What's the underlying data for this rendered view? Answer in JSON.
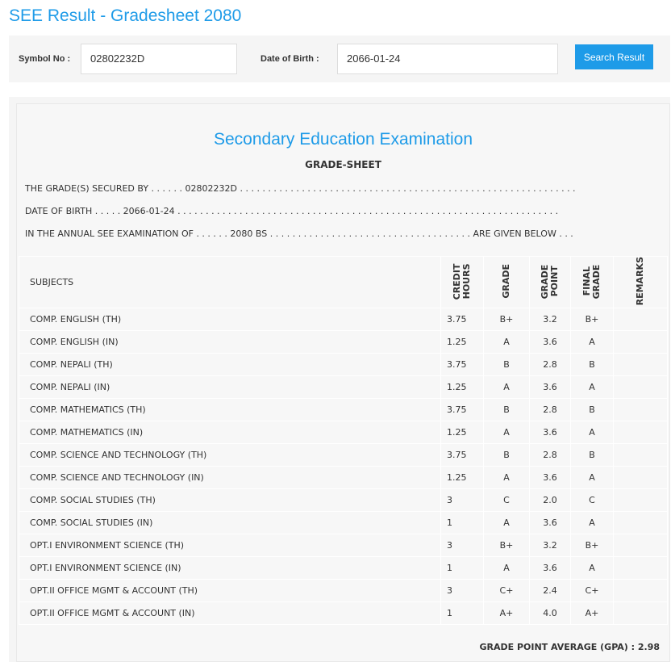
{
  "page_title": "SEE Result - Gradesheet 2080",
  "form": {
    "symbol_label": "Symbol No :",
    "symbol_value": "02802232D",
    "dob_label": "Date of Birth :",
    "dob_value": "2066-01-24",
    "search_label": "Search Result"
  },
  "sheet": {
    "heading": "Secondary Education Examination",
    "subheading": "GRADE-SHEET",
    "line1": "THE GRADE(S) SECURED BY . . . . . . 02802232D . . . . . . . . . . . . . . . . . . . . . . . . . . . . . . . . . . . . . . . . . . . . . . . . . . . . . . . . . . . .",
    "line2": "DATE OF BIRTH . . . . . 2066-01-24 . . . . . . . . . . . . . . . . . . . . . . . . . . . . . . . . . . . . . . . . . . . . . . . . . . . . . . . . . . . . . . . . . . . .",
    "line3": "IN THE ANNUAL SEE EXAMINATION OF . . . . . . 2080 BS . . . . . . . . . . . . . . . . . . . . . . . . . . . . . . . . . . . . ARE GIVEN BELOW . . .",
    "columns": [
      "SUBJECTS",
      "CREDIT HOURS",
      "GRADE",
      "GRADE POINT",
      "FINAL GRADE",
      "REMARKS"
    ],
    "rows": [
      [
        "COMP. ENGLISH (TH)",
        "3.75",
        "B+",
        "3.2",
        "B+"
      ],
      [
        "COMP. ENGLISH (IN)",
        "1.25",
        "A",
        "3.6",
        "A"
      ],
      [
        "COMP. NEPALI (TH)",
        "3.75",
        "B",
        "2.8",
        "B"
      ],
      [
        "COMP. NEPALI (IN)",
        "1.25",
        "A",
        "3.6",
        "A"
      ],
      [
        "COMP. MATHEMATICS (TH)",
        "3.75",
        "B",
        "2.8",
        "B"
      ],
      [
        "COMP. MATHEMATICS (IN)",
        "1.25",
        "A",
        "3.6",
        "A"
      ],
      [
        "COMP. SCIENCE AND TECHNOLOGY (TH)",
        "3.75",
        "B",
        "2.8",
        "B"
      ],
      [
        "COMP. SCIENCE AND TECHNOLOGY (IN)",
        "1.25",
        "A",
        "3.6",
        "A"
      ],
      [
        "COMP. SOCIAL STUDIES (TH)",
        "3",
        "C",
        "2.0",
        "C"
      ],
      [
        "COMP. SOCIAL STUDIES (IN)",
        "1",
        "A",
        "3.6",
        "A"
      ],
      [
        "OPT.I ENVIRONMENT SCIENCE (TH)",
        "3",
        "B+",
        "3.2",
        "B+"
      ],
      [
        "OPT.I ENVIRONMENT SCIENCE (IN)",
        "1",
        "A",
        "3.6",
        "A"
      ],
      [
        "OPT.II OFFICE MGMT & ACCOUNT (TH)",
        "3",
        "C+",
        "2.4",
        "C+"
      ],
      [
        "OPT.II OFFICE MGMT & ACCOUNT (IN)",
        "1",
        "A+",
        "4.0",
        "A+"
      ]
    ],
    "gpa": "GRADE POINT AVERAGE (GPA) : 2.98"
  },
  "colors": {
    "accent": "#1e9be8"
  }
}
